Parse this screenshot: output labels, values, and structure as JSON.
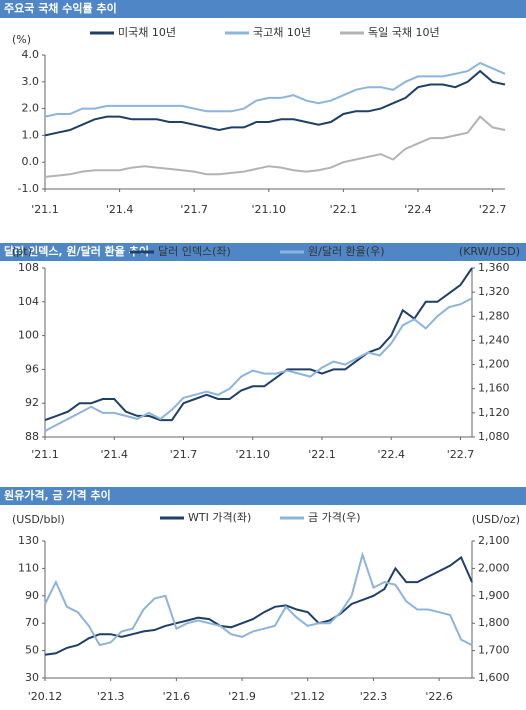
{
  "chart_data": [
    {
      "type": "line",
      "title": "주요국 국채 수익률 추이",
      "y_label": "(%)",
      "categories": [
        "'21.1",
        null,
        null,
        null,
        null,
        null,
        "'21.4",
        null,
        null,
        null,
        null,
        null,
        "'21.7",
        null,
        null,
        null,
        null,
        null,
        "'21.10",
        null,
        null,
        null,
        null,
        null,
        "'22.1",
        null,
        null,
        null,
        null,
        null,
        "'22.4",
        null,
        null,
        null,
        null,
        null,
        "'22.7",
        null
      ],
      "series": [
        {
          "name": "미국채 10년",
          "color": "#1f3f66",
          "values": [
            1.0,
            1.1,
            1.2,
            1.4,
            1.6,
            1.7,
            1.7,
            1.6,
            1.6,
            1.6,
            1.5,
            1.5,
            1.4,
            1.3,
            1.2,
            1.3,
            1.3,
            1.5,
            1.5,
            1.6,
            1.6,
            1.5,
            1.4,
            1.5,
            1.8,
            1.9,
            1.9,
            2.0,
            2.2,
            2.4,
            2.8,
            2.9,
            2.9,
            2.8,
            3.0,
            3.4,
            3.0,
            2.9
          ]
        },
        {
          "name": "국고채 10년",
          "color": "#8db4dc",
          "values": [
            1.7,
            1.8,
            1.8,
            2.0,
            2.0,
            2.1,
            2.1,
            2.1,
            2.1,
            2.1,
            2.1,
            2.1,
            2.0,
            1.9,
            1.9,
            1.9,
            2.0,
            2.3,
            2.4,
            2.4,
            2.5,
            2.3,
            2.2,
            2.3,
            2.5,
            2.7,
            2.8,
            2.8,
            2.7,
            3.0,
            3.2,
            3.2,
            3.2,
            3.3,
            3.4,
            3.7,
            3.5,
            3.3
          ]
        },
        {
          "name": "독일 국채 10년",
          "color": "#b3b3b3",
          "values": [
            -0.55,
            -0.5,
            -0.45,
            -0.35,
            -0.3,
            -0.3,
            -0.3,
            -0.2,
            -0.15,
            -0.2,
            -0.25,
            -0.3,
            -0.35,
            -0.45,
            -0.45,
            -0.4,
            -0.35,
            -0.25,
            -0.15,
            -0.2,
            -0.3,
            -0.35,
            -0.3,
            -0.2,
            0.0,
            0.1,
            0.2,
            0.3,
            0.1,
            0.5,
            0.7,
            0.9,
            0.9,
            1.0,
            1.1,
            1.7,
            1.3,
            1.2
          ]
        }
      ],
      "ylim": [
        -1,
        4
      ],
      "yticks": [
        {
          "value": -1,
          "label": "-1.0"
        },
        {
          "value": 0,
          "label": "0.0"
        },
        {
          "value": 1,
          "label": "1.0"
        },
        {
          "value": 2,
          "label": "2.0"
        },
        {
          "value": 3,
          "label": "3.0"
        },
        {
          "value": 4,
          "label": "4.0"
        }
      ]
    },
    {
      "type": "line",
      "title": "달러 인덱스, 원/달러 환율 추이",
      "y_label": "(pt)",
      "y2_label": "(KRW/USD)",
      "categories": [
        "'21.1",
        null,
        null,
        null,
        null,
        null,
        "'21.4",
        null,
        null,
        null,
        null,
        null,
        "'21.7",
        null,
        null,
        null,
        null,
        null,
        "'21.10",
        null,
        null,
        null,
        null,
        null,
        "'22.1",
        null,
        null,
        null,
        null,
        null,
        "'22.4",
        null,
        null,
        null,
        null,
        null,
        "'22.7",
        null
      ],
      "series": [
        {
          "name": "달러 인덱스(좌)",
          "color": "#1f3f66",
          "values": [
            90,
            90.5,
            91,
            92,
            92,
            92.5,
            92.5,
            91,
            90.5,
            90.5,
            90,
            90,
            92,
            92.5,
            93,
            92.5,
            92.5,
            93.5,
            94,
            94,
            95,
            96,
            96,
            96,
            95.5,
            96,
            96,
            97,
            98,
            98.5,
            100,
            103,
            102,
            104,
            104,
            105,
            106,
            108
          ]
        },
        {
          "name": "원/달러 환율(우)",
          "color": "#8db4dc",
          "axis": "y2",
          "values": [
            1090,
            1100,
            1110,
            1120,
            1130,
            1120,
            1120,
            1115,
            1110,
            1120,
            1110,
            1125,
            1145,
            1150,
            1155,
            1150,
            1160,
            1180,
            1190,
            1185,
            1185,
            1190,
            1185,
            1180,
            1195,
            1205,
            1200,
            1210,
            1220,
            1215,
            1235,
            1265,
            1275,
            1260,
            1280,
            1295,
            1300,
            1310
          ]
        }
      ],
      "ylim": [
        88,
        108
      ],
      "yticks": [
        88,
        92,
        96,
        100,
        104,
        108
      ],
      "y2lim": [
        1080,
        1360
      ],
      "y2ticks": [
        {
          "value": 1080,
          "label": "1,080"
        },
        {
          "value": 1120,
          "label": "1,120"
        },
        {
          "value": 1160,
          "label": "1,160"
        },
        {
          "value": 1200,
          "label": "1,200"
        },
        {
          "value": 1240,
          "label": "1,240"
        },
        {
          "value": 1280,
          "label": "1,280"
        },
        {
          "value": 1320,
          "label": "1,320"
        },
        {
          "value": 1360,
          "label": "1,360"
        }
      ]
    },
    {
      "type": "line",
      "title": "원유가격, 금 가격 추이",
      "y_label": "(USD/bbl)",
      "y2_label": "(USD/oz)",
      "categories": [
        "'20.12",
        null,
        null,
        null,
        null,
        null,
        "'21.3",
        null,
        null,
        null,
        null,
        null,
        "'21.6",
        null,
        null,
        null,
        null,
        null,
        "'21.9",
        null,
        null,
        null,
        null,
        null,
        "'21.12",
        null,
        null,
        null,
        null,
        null,
        "'22.3",
        null,
        null,
        null,
        null,
        null,
        "'22.6",
        null,
        null,
        null
      ],
      "series": [
        {
          "name": "WTI 가격(좌)",
          "color": "#1f3f66",
          "values": [
            47,
            48,
            52,
            54,
            59,
            62,
            62,
            60,
            62,
            64,
            65,
            68,
            70,
            72,
            74,
            73,
            68,
            67,
            70,
            73,
            78,
            82,
            83,
            80,
            78,
            70,
            72,
            77,
            84,
            87,
            90,
            95,
            110,
            100,
            100,
            104,
            108,
            112,
            118,
            100
          ]
        },
        {
          "name": "금 가격(우)",
          "color": "#8db4dc",
          "axis": "y2",
          "values": [
            1870,
            1950,
            1860,
            1840,
            1790,
            1720,
            1730,
            1770,
            1780,
            1850,
            1890,
            1900,
            1780,
            1800,
            1810,
            1800,
            1790,
            1760,
            1750,
            1770,
            1780,
            1790,
            1860,
            1820,
            1790,
            1800,
            1800,
            1840,
            1900,
            2050,
            1930,
            1950,
            1940,
            1880,
            1850,
            1850,
            1840,
            1830,
            1740,
            1720
          ]
        }
      ],
      "ylim": [
        30,
        130
      ],
      "yticks": [
        30,
        50,
        70,
        90,
        110,
        130
      ],
      "y2lim": [
        1600,
        2100
      ],
      "y2ticks": [
        {
          "value": 1600,
          "label": "1,600"
        },
        {
          "value": 1700,
          "label": "1,700"
        },
        {
          "value": 1800,
          "label": "1,800"
        },
        {
          "value": 1900,
          "label": "1,900"
        },
        {
          "value": 2000,
          "label": "2,000"
        },
        {
          "value": 2100,
          "label": "2,100"
        }
      ]
    }
  ]
}
